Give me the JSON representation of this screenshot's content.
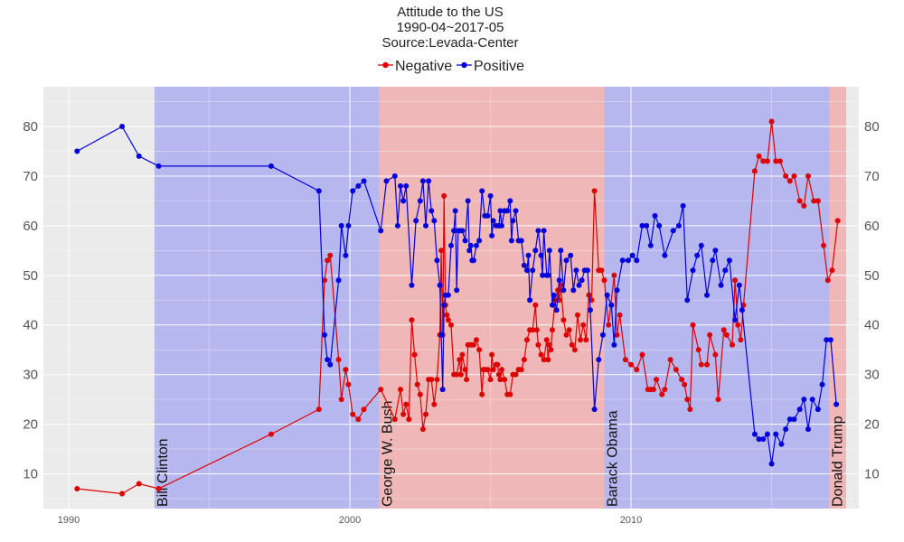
{
  "chart_data": {
    "type": "line",
    "title": [
      "Attitude to the US",
      "1990-04~2017-05",
      "Source:Levada-Center"
    ],
    "xlabel": "",
    "ylabel": "",
    "x_ticks": [
      1990,
      2000,
      2010
    ],
    "y_ticks": [
      10,
      20,
      30,
      40,
      50,
      60,
      70,
      80
    ],
    "xlim": [
      1989.1,
      2018.1
    ],
    "ylim": [
      3,
      88
    ],
    "grid": true,
    "legend_position": "top",
    "background_color": "#ebebeb",
    "eras": [
      {
        "label": "Bill Clinton",
        "start": 1993.05,
        "end": 2001.05,
        "color": "#0000ff"
      },
      {
        "label": "George W. Bush",
        "start": 2001.05,
        "end": 2009.05,
        "color": "#ff0000"
      },
      {
        "label": "Barack Obama",
        "start": 2009.05,
        "end": 2017.05,
        "color": "#0000ff"
      },
      {
        "label": "Donald Trump",
        "start": 2017.05,
        "end": 2017.65,
        "color": "#ff0000"
      }
    ],
    "series": [
      {
        "name": "Negative",
        "color": "#dd0000",
        "points": [
          [
            1990.3,
            7
          ],
          [
            1991.9,
            6
          ],
          [
            1992.5,
            8
          ],
          [
            1993.2,
            7
          ],
          [
            1997.2,
            18
          ],
          [
            1998.9,
            23
          ],
          [
            1999.1,
            49
          ],
          [
            1999.2,
            53
          ],
          [
            1999.3,
            54
          ],
          [
            1999.6,
            33
          ],
          [
            1999.7,
            25
          ],
          [
            1999.85,
            31
          ],
          [
            1999.95,
            28
          ],
          [
            2000.1,
            22
          ],
          [
            2000.3,
            21
          ],
          [
            2000.5,
            23
          ],
          [
            2001.1,
            27
          ],
          [
            2001.6,
            21
          ],
          [
            2001.8,
            27
          ],
          [
            2001.9,
            22
          ],
          [
            2002.0,
            24
          ],
          [
            2002.1,
            21
          ],
          [
            2002.2,
            41
          ],
          [
            2002.3,
            34
          ],
          [
            2002.4,
            28
          ],
          [
            2002.5,
            26
          ],
          [
            2002.6,
            19
          ],
          [
            2002.7,
            22
          ],
          [
            2002.8,
            29
          ],
          [
            2002.9,
            29
          ],
          [
            2003.0,
            24
          ],
          [
            2003.1,
            29
          ],
          [
            2003.2,
            38
          ],
          [
            2003.25,
            55
          ],
          [
            2003.3,
            38
          ],
          [
            2003.35,
            66
          ],
          [
            2003.4,
            44
          ],
          [
            2003.45,
            42
          ],
          [
            2003.5,
            41
          ],
          [
            2003.6,
            40
          ],
          [
            2003.7,
            30
          ],
          [
            2003.8,
            30
          ],
          [
            2003.9,
            33
          ],
          [
            2003.95,
            30
          ],
          [
            2004.0,
            34
          ],
          [
            2004.1,
            31
          ],
          [
            2004.15,
            29
          ],
          [
            2004.2,
            36
          ],
          [
            2004.3,
            36
          ],
          [
            2004.4,
            36
          ],
          [
            2004.5,
            37
          ],
          [
            2004.6,
            35
          ],
          [
            2004.7,
            26
          ],
          [
            2004.75,
            31
          ],
          [
            2004.8,
            31
          ],
          [
            2004.9,
            31
          ],
          [
            2005.0,
            29
          ],
          [
            2005.05,
            34
          ],
          [
            2005.1,
            31
          ],
          [
            2005.2,
            32
          ],
          [
            2005.25,
            32
          ],
          [
            2005.3,
            30
          ],
          [
            2005.35,
            29
          ],
          [
            2005.4,
            31
          ],
          [
            2005.5,
            29
          ],
          [
            2005.6,
            26
          ],
          [
            2005.7,
            26
          ],
          [
            2005.8,
            30
          ],
          [
            2005.9,
            30
          ],
          [
            2006.0,
            31
          ],
          [
            2006.1,
            31
          ],
          [
            2006.2,
            33
          ],
          [
            2006.3,
            37
          ],
          [
            2006.4,
            39
          ],
          [
            2006.5,
            39
          ],
          [
            2006.6,
            44
          ],
          [
            2006.65,
            39
          ],
          [
            2006.7,
            36
          ],
          [
            2006.8,
            34
          ],
          [
            2006.9,
            33
          ],
          [
            2007.0,
            37
          ],
          [
            2007.05,
            33
          ],
          [
            2007.1,
            36
          ],
          [
            2007.15,
            35
          ],
          [
            2007.2,
            39
          ],
          [
            2007.3,
            45
          ],
          [
            2007.4,
            47
          ],
          [
            2007.45,
            45
          ],
          [
            2007.5,
            48
          ],
          [
            2007.6,
            41
          ],
          [
            2007.7,
            38
          ],
          [
            2007.8,
            39
          ],
          [
            2007.9,
            36
          ],
          [
            2008.0,
            35
          ],
          [
            2008.1,
            42
          ],
          [
            2008.2,
            37
          ],
          [
            2008.3,
            40
          ],
          [
            2008.4,
            37
          ],
          [
            2008.5,
            46
          ],
          [
            2008.6,
            45
          ],
          [
            2008.7,
            67
          ],
          [
            2008.85,
            51
          ],
          [
            2008.95,
            51
          ],
          [
            2009.05,
            49
          ],
          [
            2009.2,
            40
          ],
          [
            2009.4,
            50
          ],
          [
            2009.5,
            38
          ],
          [
            2009.6,
            42
          ],
          [
            2009.8,
            33
          ],
          [
            2010.0,
            32
          ],
          [
            2010.2,
            31
          ],
          [
            2010.4,
            34
          ],
          [
            2010.6,
            27
          ],
          [
            2010.7,
            27
          ],
          [
            2010.8,
            27
          ],
          [
            2010.9,
            29
          ],
          [
            2011.1,
            26
          ],
          [
            2011.2,
            27
          ],
          [
            2011.4,
            33
          ],
          [
            2011.6,
            31
          ],
          [
            2011.8,
            29
          ],
          [
            2011.9,
            28
          ],
          [
            2012.0,
            25
          ],
          [
            2012.1,
            23
          ],
          [
            2012.2,
            40
          ],
          [
            2012.4,
            35
          ],
          [
            2012.5,
            32
          ],
          [
            2012.7,
            32
          ],
          [
            2012.8,
            38
          ],
          [
            2013.0,
            34
          ],
          [
            2013.1,
            25
          ],
          [
            2013.3,
            39
          ],
          [
            2013.4,
            38
          ],
          [
            2013.6,
            36
          ],
          [
            2013.7,
            49
          ],
          [
            2013.8,
            40
          ],
          [
            2013.9,
            37
          ],
          [
            2014.0,
            44
          ],
          [
            2014.4,
            71
          ],
          [
            2014.55,
            74
          ],
          [
            2014.7,
            73
          ],
          [
            2014.85,
            73
          ],
          [
            2015.0,
            81
          ],
          [
            2015.15,
            73
          ],
          [
            2015.3,
            73
          ],
          [
            2015.5,
            70
          ],
          [
            2015.65,
            69
          ],
          [
            2015.8,
            70
          ],
          [
            2016.0,
            65
          ],
          [
            2016.15,
            64
          ],
          [
            2016.3,
            70
          ],
          [
            2016.5,
            65
          ],
          [
            2016.65,
            65
          ],
          [
            2016.85,
            56
          ],
          [
            2017.0,
            49
          ],
          [
            2017.15,
            51
          ],
          [
            2017.35,
            61
          ]
        ]
      },
      {
        "name": "Positive",
        "color": "#0000dd",
        "points": [
          [
            1990.3,
            75
          ],
          [
            1991.9,
            80
          ],
          [
            1992.5,
            74
          ],
          [
            1993.2,
            72
          ],
          [
            1997.2,
            72
          ],
          [
            1998.9,
            67
          ],
          [
            1999.1,
            38
          ],
          [
            1999.2,
            33
          ],
          [
            1999.3,
            32
          ],
          [
            1999.6,
            49
          ],
          [
            1999.7,
            60
          ],
          [
            1999.85,
            54
          ],
          [
            1999.95,
            60
          ],
          [
            2000.1,
            67
          ],
          [
            2000.3,
            68
          ],
          [
            2000.5,
            69
          ],
          [
            2001.1,
            59
          ],
          [
            2001.3,
            69
          ],
          [
            2001.6,
            70
          ],
          [
            2001.7,
            60
          ],
          [
            2001.8,
            68
          ],
          [
            2001.9,
            65
          ],
          [
            2002.0,
            68
          ],
          [
            2002.2,
            48
          ],
          [
            2002.35,
            61
          ],
          [
            2002.5,
            65
          ],
          [
            2002.6,
            69
          ],
          [
            2002.7,
            60
          ],
          [
            2002.8,
            69
          ],
          [
            2002.9,
            63
          ],
          [
            2003.0,
            61
          ],
          [
            2003.1,
            53
          ],
          [
            2003.2,
            48
          ],
          [
            2003.25,
            38
          ],
          [
            2003.3,
            27
          ],
          [
            2003.35,
            44
          ],
          [
            2003.4,
            46
          ],
          [
            2003.5,
            46
          ],
          [
            2003.6,
            56
          ],
          [
            2003.7,
            59
          ],
          [
            2003.75,
            63
          ],
          [
            2003.8,
            47
          ],
          [
            2003.85,
            59
          ],
          [
            2003.9,
            59
          ],
          [
            2004.0,
            59
          ],
          [
            2004.1,
            57
          ],
          [
            2004.2,
            65
          ],
          [
            2004.25,
            55
          ],
          [
            2004.3,
            56
          ],
          [
            2004.35,
            53
          ],
          [
            2004.4,
            53
          ],
          [
            2004.5,
            56
          ],
          [
            2004.6,
            57
          ],
          [
            2004.7,
            67
          ],
          [
            2004.8,
            62
          ],
          [
            2004.9,
            62
          ],
          [
            2005.0,
            66
          ],
          [
            2005.05,
            58
          ],
          [
            2005.1,
            61
          ],
          [
            2005.2,
            60
          ],
          [
            2005.3,
            60
          ],
          [
            2005.35,
            63
          ],
          [
            2005.4,
            60
          ],
          [
            2005.5,
            63
          ],
          [
            2005.6,
            63
          ],
          [
            2005.7,
            65
          ],
          [
            2005.75,
            57
          ],
          [
            2005.8,
            61
          ],
          [
            2005.9,
            63
          ],
          [
            2006.0,
            57
          ],
          [
            2006.1,
            57
          ],
          [
            2006.2,
            52
          ],
          [
            2006.3,
            51
          ],
          [
            2006.35,
            54
          ],
          [
            2006.4,
            45
          ],
          [
            2006.5,
            51
          ],
          [
            2006.6,
            55
          ],
          [
            2006.7,
            59
          ],
          [
            2006.8,
            54
          ],
          [
            2006.85,
            50
          ],
          [
            2006.9,
            59
          ],
          [
            2007.0,
            50
          ],
          [
            2007.05,
            50
          ],
          [
            2007.1,
            55
          ],
          [
            2007.2,
            44
          ],
          [
            2007.25,
            46
          ],
          [
            2007.35,
            43
          ],
          [
            2007.45,
            49
          ],
          [
            2007.5,
            55
          ],
          [
            2007.6,
            47
          ],
          [
            2007.7,
            53
          ],
          [
            2007.85,
            54
          ],
          [
            2007.95,
            47
          ],
          [
            2008.05,
            51
          ],
          [
            2008.15,
            48
          ],
          [
            2008.25,
            49
          ],
          [
            2008.35,
            51
          ],
          [
            2008.45,
            51
          ],
          [
            2008.55,
            43
          ],
          [
            2008.7,
            23
          ],
          [
            2008.85,
            33
          ],
          [
            2009.0,
            38
          ],
          [
            2009.15,
            46
          ],
          [
            2009.3,
            44
          ],
          [
            2009.4,
            36
          ],
          [
            2009.5,
            47
          ],
          [
            2009.7,
            53
          ],
          [
            2009.9,
            53
          ],
          [
            2010.05,
            54
          ],
          [
            2010.2,
            53
          ],
          [
            2010.4,
            60
          ],
          [
            2010.55,
            60
          ],
          [
            2010.7,
            56
          ],
          [
            2010.85,
            62
          ],
          [
            2011.0,
            60
          ],
          [
            2011.2,
            54
          ],
          [
            2011.5,
            59
          ],
          [
            2011.7,
            60
          ],
          [
            2011.85,
            64
          ],
          [
            2012.0,
            45
          ],
          [
            2012.2,
            51
          ],
          [
            2012.35,
            54
          ],
          [
            2012.5,
            56
          ],
          [
            2012.7,
            46
          ],
          [
            2012.9,
            53
          ],
          [
            2013.0,
            55
          ],
          [
            2013.2,
            48
          ],
          [
            2013.35,
            51
          ],
          [
            2013.5,
            53
          ],
          [
            2013.7,
            41
          ],
          [
            2013.85,
            48
          ],
          [
            2013.95,
            43
          ],
          [
            2014.4,
            18
          ],
          [
            2014.55,
            17
          ],
          [
            2014.7,
            17
          ],
          [
            2014.85,
            18
          ],
          [
            2015.0,
            12
          ],
          [
            2015.15,
            18
          ],
          [
            2015.35,
            16
          ],
          [
            2015.5,
            19
          ],
          [
            2015.65,
            21
          ],
          [
            2015.8,
            21
          ],
          [
            2016.0,
            23
          ],
          [
            2016.15,
            25
          ],
          [
            2016.3,
            19
          ],
          [
            2016.45,
            25
          ],
          [
            2016.65,
            23
          ],
          [
            2016.8,
            28
          ],
          [
            2016.95,
            37
          ],
          [
            2017.1,
            37
          ],
          [
            2017.3,
            24
          ]
        ]
      }
    ]
  }
}
